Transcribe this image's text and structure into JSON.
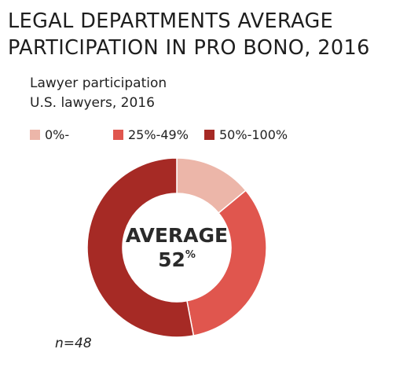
{
  "chart_data": {
    "type": "pie",
    "title_lines": [
      "LEGAL DEPARTMENTS AVERAGE",
      "PARTICIPATION IN PRO BONO, 2016"
    ],
    "subtitle_lines": [
      "Lawyer participation",
      "U.S. lawyers, 2016"
    ],
    "categories": [
      "0%-",
      "25%-49%",
      "50%-100%"
    ],
    "values": [
      14,
      33,
      53
    ],
    "colors": [
      "#ecb6a9",
      "#e0564e",
      "#a62a25"
    ],
    "center_label": {
      "line1": "AVERAGE",
      "value": "52",
      "unit": "%"
    },
    "note": "n=48",
    "legend_position": "top-left",
    "start_angle_deg": 0,
    "direction": "clockwise"
  }
}
